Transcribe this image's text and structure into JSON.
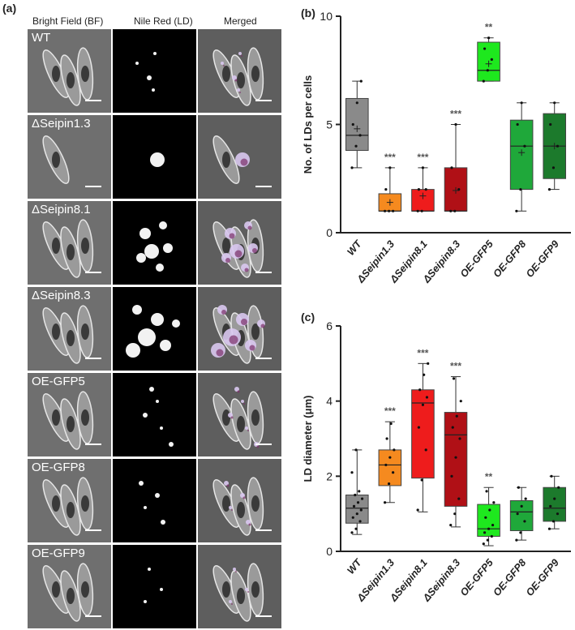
{
  "panel_a": {
    "letter": "(a)",
    "columns": [
      "Bright Field (BF)",
      "Nile Red (LD)",
      "Merged"
    ],
    "rows": [
      "WT",
      "ΔSeipin1.3",
      "ΔSeipin8.1",
      "ΔSeipin8.3",
      "OE-GFP5",
      "OE-GFP8",
      "OE-GFP9"
    ]
  },
  "chart_data": [
    {
      "panel": "(b)",
      "type": "box",
      "ylabel": "No. of LDs per cells",
      "ylim": [
        0,
        10
      ],
      "yticks": [
        0,
        5,
        10
      ],
      "categories": [
        "WT",
        "ΔSeipin1.3",
        "ΔSeipin8.1",
        "ΔSeipin8.3",
        "OE-GFP5",
        "OE-GFP8",
        "OE-GFP9"
      ],
      "colors": [
        "#8a8a8a",
        "#f58a1f",
        "#ee1c1c",
        "#b01016",
        "#1ee81e",
        "#1fa83a",
        "#1c7a2c"
      ],
      "significance": [
        "",
        "***",
        "***",
        "***",
        "**",
        "",
        ""
      ],
      "boxes": [
        {
          "min": 3,
          "q1": 3.8,
          "median": 4.5,
          "q3": 6.2,
          "max": 7,
          "mean": 4.8,
          "points": [
            3,
            4,
            4.5,
            5,
            6,
            7
          ]
        },
        {
          "min": 1,
          "q1": 1,
          "median": 1,
          "q3": 1.8,
          "max": 3,
          "mean": 1.4,
          "points": [
            1,
            1,
            1,
            2,
            3
          ]
        },
        {
          "min": 1,
          "q1": 1,
          "median": 1,
          "q3": 2,
          "max": 3,
          "mean": 1.7,
          "points": [
            1,
            1,
            2,
            2,
            3
          ]
        },
        {
          "min": 1,
          "q1": 1,
          "median": 1,
          "q3": 3,
          "max": 5,
          "mean": 1.95,
          "points": [
            1,
            1,
            2,
            3,
            5
          ]
        },
        {
          "min": 7,
          "q1": 7,
          "median": 7.5,
          "q3": 8.8,
          "max": 9,
          "mean": 7.8,
          "points": [
            7,
            7.5,
            8,
            8.5,
            9
          ]
        },
        {
          "min": 1,
          "q1": 2,
          "median": 4,
          "q3": 5.2,
          "max": 6,
          "mean": 3.7,
          "points": [
            1,
            2,
            4,
            5,
            6
          ]
        },
        {
          "min": 2,
          "q1": 2.5,
          "median": 4,
          "q3": 5.5,
          "max": 6,
          "mean": 4,
          "points": [
            2,
            3,
            4,
            5,
            6
          ]
        }
      ]
    },
    {
      "panel": "(c)",
      "type": "box",
      "ylabel": "LD diameter (μm)",
      "ylim": [
        0,
        6
      ],
      "yticks": [
        0,
        2,
        4,
        6
      ],
      "categories": [
        "WT",
        "ΔSeipin1.3",
        "ΔSeipin8.1",
        "ΔSeipin8.3",
        "OE-GFP5",
        "OE-GFP8",
        "OE-GFP9"
      ],
      "colors": [
        "#8a8a8a",
        "#f58a1f",
        "#ee1c1c",
        "#b01016",
        "#1ee81e",
        "#1fa83a",
        "#1c7a2c"
      ],
      "significance": [
        "",
        "***",
        "***",
        "***",
        "**",
        "",
        ""
      ],
      "boxes": [
        {
          "min": 0.45,
          "q1": 0.75,
          "median": 1.15,
          "q3": 1.5,
          "max": 2.7,
          "points": [
            0.5,
            0.6,
            0.8,
            0.9,
            1.0,
            1.1,
            1.2,
            1.3,
            1.4,
            1.5,
            1.6,
            2.1,
            2.7
          ]
        },
        {
          "min": 1.3,
          "q1": 1.75,
          "median": 2.3,
          "q3": 2.7,
          "max": 3.45,
          "points": [
            1.3,
            1.8,
            2.1,
            2.3,
            2.5,
            2.7,
            3.0,
            3.4
          ]
        },
        {
          "min": 1.05,
          "q1": 1.95,
          "median": 3.95,
          "q3": 4.3,
          "max": 5.0,
          "points": [
            1.1,
            1.9,
            2.7,
            3.3,
            3.9,
            4.1,
            4.3,
            4.7,
            5.0
          ]
        },
        {
          "min": 0.65,
          "q1": 1.2,
          "median": 3.1,
          "q3": 3.7,
          "max": 4.65,
          "points": [
            0.7,
            1.0,
            1.4,
            2.0,
            2.5,
            3.0,
            3.3,
            3.6,
            4.0,
            4.6
          ]
        },
        {
          "min": 0.15,
          "q1": 0.4,
          "median": 0.6,
          "q3": 1.25,
          "max": 1.7,
          "points": [
            0.2,
            0.3,
            0.4,
            0.5,
            0.6,
            0.7,
            0.9,
            1.1,
            1.3,
            1.6
          ]
        },
        {
          "min": 0.3,
          "q1": 0.55,
          "median": 1.05,
          "q3": 1.35,
          "max": 1.7,
          "points": [
            0.3,
            0.5,
            0.8,
            1.0,
            1.2,
            1.4,
            1.7
          ]
        },
        {
          "min": 0.6,
          "q1": 0.8,
          "median": 1.15,
          "q3": 1.7,
          "max": 2.0,
          "points": [
            0.6,
            0.8,
            1.0,
            1.2,
            1.4,
            1.7,
            2.0
          ]
        }
      ]
    }
  ]
}
